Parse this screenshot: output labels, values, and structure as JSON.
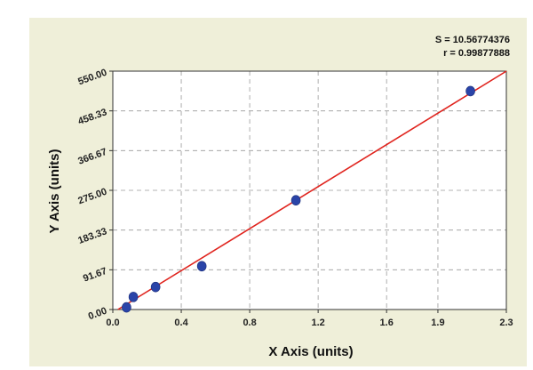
{
  "colors": {
    "panel_background": "#efefd9",
    "plot_background": "#ffffff",
    "grid": "#9a9a9a",
    "fit_line": "#e0241e",
    "points": "#2a44a8"
  },
  "chart_data": {
    "type": "scatter",
    "xlabel": "X Axis (units)",
    "ylabel": "Y Axis (units)",
    "xlim": [
      0,
      2.3
    ],
    "ylim": [
      0,
      550
    ],
    "x_ticks": [
      0,
      0.4,
      0.8,
      1.2,
      1.6,
      1.9,
      2.3
    ],
    "x_tick_labels": [
      "0.0",
      "0.4",
      "0.8",
      "1.2",
      "1.6",
      "1.9",
      "2.3"
    ],
    "y_ticks": [
      0,
      91.67,
      183.33,
      275,
      366.67,
      458.33,
      550
    ],
    "y_tick_labels": [
      "0.00",
      "91.67",
      "183.33",
      "275.00",
      "366.67",
      "458.33",
      "550.00"
    ],
    "grid": true,
    "points": [
      {
        "x": 0.08,
        "y": 5
      },
      {
        "x": 0.12,
        "y": 29
      },
      {
        "x": 0.25,
        "y": 52
      },
      {
        "x": 0.52,
        "y": 100
      },
      {
        "x": 1.07,
        "y": 252
      },
      {
        "x": 2.09,
        "y": 504
      }
    ],
    "fit_line": {
      "x": [
        0.03,
        2.3
      ],
      "y": [
        0,
        550
      ]
    },
    "stats": [
      "S = 10.56774376",
      "r = 0.99877888"
    ]
  }
}
